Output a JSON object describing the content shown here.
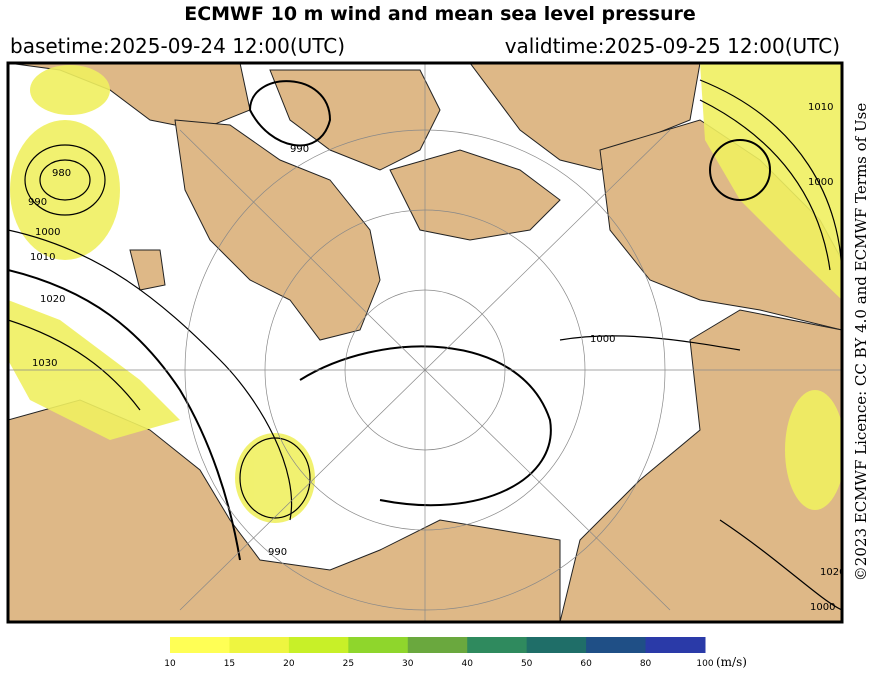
{
  "header": {
    "title": "ECMWF 10 m wind and mean sea level pressure",
    "basetime": "basetime:2025-09-24 12:00(UTC)",
    "validtime": "validtime:2025-09-25 12:00(UTC)"
  },
  "licence": "©2023 ECMWF Licence: CC BY 4.0 and ECMWF Terms of Use",
  "map": {
    "contour_labels": [
      980,
      990,
      1000,
      1010,
      1020,
      1030,
      990,
      1000,
      1010,
      1000,
      1000,
      1020,
      990
    ]
  },
  "colorbar": {
    "ticks": [
      10,
      15,
      20,
      25,
      30,
      40,
      50,
      60,
      80,
      100
    ],
    "colors": [
      "#ffff55",
      "#eef540",
      "#c8f028",
      "#8fd62c",
      "#6aa83e",
      "#2f8a5e",
      "#1f6e68",
      "#1f4f86",
      "#2a3aa8"
    ],
    "unit": "(m/s)"
  }
}
